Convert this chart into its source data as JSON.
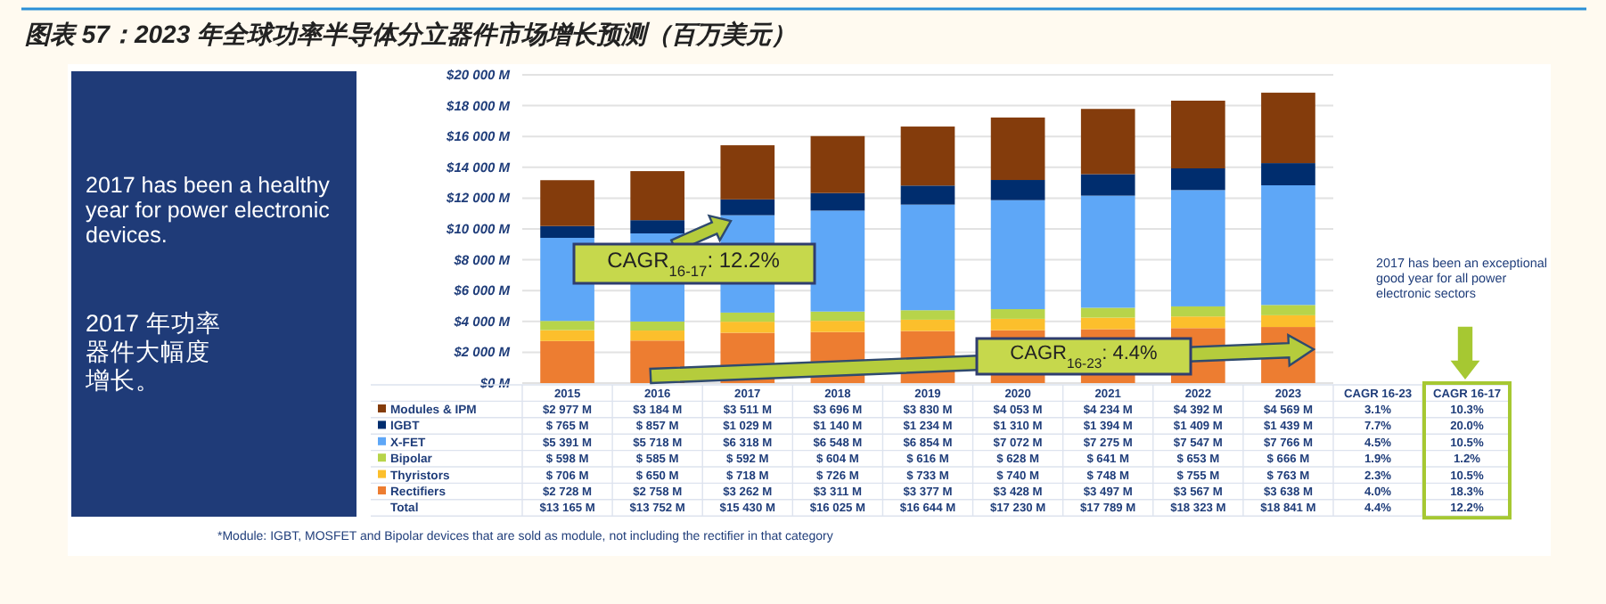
{
  "chart_data": {
    "type": "bar",
    "stacked": true,
    "title": "图表 57：2023 年全球功率半导体分立器件市场增长预测（百万美元）",
    "categories": [
      "2015",
      "2016",
      "2017",
      "2018",
      "2019",
      "2020",
      "2021",
      "2022",
      "2023"
    ],
    "series": [
      {
        "name": "Rectifiers",
        "color": "#ed7d31",
        "values": [
          2728,
          2758,
          3262,
          3311,
          3377,
          3428,
          3497,
          3567,
          3638
        ],
        "value_labels": [
          "$2 728 M",
          "$2 758 M",
          "$3 262 M",
          "$3 311 M",
          "$3 377 M",
          "$3 428 M",
          "$3 497 M",
          "$3 567 M",
          "$3 638 M"
        ]
      },
      {
        "name": "Thyristors",
        "color": "#fcbf2c",
        "values": [
          706,
          650,
          718,
          726,
          733,
          740,
          748,
          755,
          763
        ],
        "value_labels": [
          "$ 706 M",
          "$ 650 M",
          "$ 718 M",
          "$ 726 M",
          "$ 733 M",
          "$ 740 M",
          "$ 748 M",
          "$ 755 M",
          "$ 763 M"
        ]
      },
      {
        "name": "Bipolar",
        "color": "#b7d44a",
        "values": [
          598,
          585,
          592,
          604,
          616,
          628,
          641,
          653,
          666
        ],
        "value_labels": [
          "$ 598 M",
          "$ 585 M",
          "$ 592 M",
          "$ 604 M",
          "$ 616 M",
          "$ 628 M",
          "$ 641 M",
          "$ 653 M",
          "$ 666 M"
        ]
      },
      {
        "name": "X-FET",
        "color": "#5ea7f7",
        "values": [
          5391,
          5718,
          6318,
          6548,
          6854,
          7072,
          7275,
          7547,
          7766
        ],
        "value_labels": [
          "$5 391 M",
          "$5 718 M",
          "$6 318 M",
          "$6 548 M",
          "$6 854 M",
          "$7 072 M",
          "$7 275 M",
          "$7 547 M",
          "$7 766 M"
        ]
      },
      {
        "name": "IGBT",
        "color": "#002d6e",
        "values": [
          765,
          857,
          1029,
          1140,
          1234,
          1310,
          1394,
          1409,
          1439
        ],
        "value_labels": [
          "$ 765 M",
          "$ 857 M",
          "$1 029 M",
          "$1 140 M",
          "$1 234 M",
          "$1 310 M",
          "$1 394 M",
          "$1 409 M",
          "$1 439 M"
        ]
      },
      {
        "name": "Modules & IPM",
        "color": "#843c0c",
        "values": [
          2977,
          3184,
          3511,
          3696,
          3830,
          4053,
          4234,
          4392,
          4569
        ],
        "value_labels": [
          "$2 977 M",
          "$3 184 M",
          "$3 511 M",
          "$3 696 M",
          "$3 830 M",
          "$4 053 M",
          "$4 234 M",
          "$4 392 M",
          "$4 569 M"
        ]
      }
    ],
    "ylim": [
      0,
      20000
    ],
    "yticks": [
      {
        "value": 0,
        "label": "$0 M"
      },
      {
        "value": 2000,
        "label": "$2 000 M"
      },
      {
        "value": 4000,
        "label": "$4 000 M"
      },
      {
        "value": 6000,
        "label": "$6 000 M"
      },
      {
        "value": 8000,
        "label": "$8 000 M"
      },
      {
        "value": 10000,
        "label": "$10 000 M"
      },
      {
        "value": 12000,
        "label": "$12 000 M"
      },
      {
        "value": 14000,
        "label": "$14 000 M"
      },
      {
        "value": 16000,
        "label": "$16 000 M"
      },
      {
        "value": 18000,
        "label": "$18 000 M"
      },
      {
        "value": 20000,
        "label": "$20 000 M"
      }
    ],
    "grid": "y",
    "legend": "bottom",
    "annotations": [
      "CAGR$_{16-17}$: 12.2%",
      "CAGR$_{16-23}$: 4.4%",
      "2017 has been an exceptional good year for all power electronic sectors",
      "2017 has been a healthy year for power electronic devices.",
      "2017 年功率器件大幅度增长。",
      "*Module: IGBT, MOSFET and Bipolar devices that are sold as module, not including the rectifier in that category",
      "CAGR 16-23",
      "CAGR 16-17",
      "Total",
      "3.1%",
      "10.3%",
      "7.7%",
      "20.0%",
      "4.5%",
      "10.5%",
      "1.9%",
      "1.2%",
      "2.3%",
      "10.5%",
      "4.0%",
      "18.3%",
      "4.4%",
      "12.2%",
      "$13 165 M",
      "$13 752 M",
      "$15 430 M",
      "$16 025 M",
      "$16 644 M",
      "$17 230 M",
      "$17 789 M",
      "$18 323 M",
      "$18 841 M"
    ]
  }
}
